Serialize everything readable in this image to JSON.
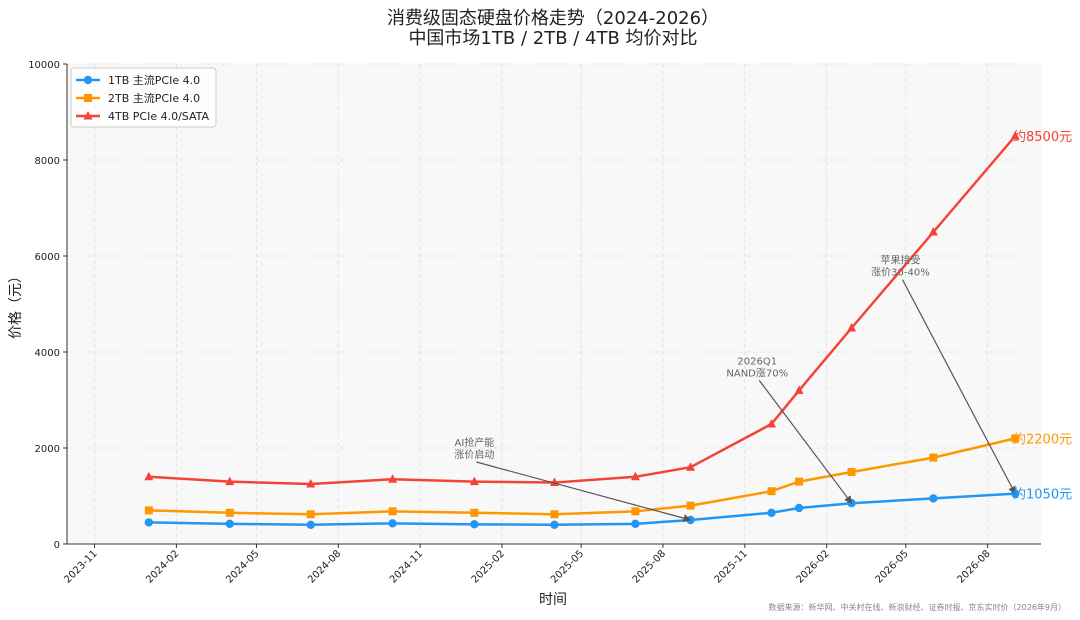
{
  "chart_data": {
    "type": "line",
    "title": "消费级固态硬盘价格走势（2024-2026）",
    "subtitle": "中国市场1TB / 2TB / 4TB 均价对比",
    "xlabel": "时间",
    "ylabel": "价格（元）",
    "ylim": [
      0,
      10000
    ],
    "yticks": [
      0,
      2000,
      4000,
      6000,
      8000,
      10000
    ],
    "xlim": [
      "2023-10-01",
      "2026-09-30"
    ],
    "xticks": [
      "2023-11",
      "2024-02",
      "2024-05",
      "2024-08",
      "2024-11",
      "2025-02",
      "2025-05",
      "2025-08",
      "2025-11",
      "2026-02",
      "2026-05",
      "2026-08"
    ],
    "grid": true,
    "legend_position": "top-left",
    "series": [
      {
        "name": "1TB 主流PCIe 4.0",
        "color": "#2196F3",
        "marker": "circle",
        "x": [
          "2024-01-01",
          "2024-04-01",
          "2024-07-01",
          "2024-10-01",
          "2025-01-01",
          "2025-04-01",
          "2025-07-01",
          "2025-09-01",
          "2025-12-01",
          "2026-01-01",
          "2026-03-01",
          "2026-06-01",
          "2026-09-01"
        ],
        "y": [
          450,
          420,
          400,
          430,
          410,
          400,
          420,
          500,
          650,
          750,
          850,
          950,
          1050
        ]
      },
      {
        "name": "2TB 主流PCIe 4.0",
        "color": "#FF9800",
        "marker": "square",
        "x": [
          "2024-01-01",
          "2024-04-01",
          "2024-07-01",
          "2024-10-01",
          "2025-01-01",
          "2025-04-01",
          "2025-07-01",
          "2025-09-01",
          "2025-12-01",
          "2026-01-01",
          "2026-03-01",
          "2026-06-01",
          "2026-09-01"
        ],
        "y": [
          700,
          650,
          620,
          680,
          650,
          620,
          680,
          800,
          1100,
          1300,
          1500,
          1800,
          2200
        ]
      },
      {
        "name": "4TB PCIe 4.0/SATA",
        "color": "#F44336",
        "marker": "triangle",
        "x": [
          "2024-01-01",
          "2024-04-01",
          "2024-07-01",
          "2024-10-01",
          "2025-01-01",
          "2025-04-01",
          "2025-07-01",
          "2025-09-01",
          "2025-12-01",
          "2026-01-01",
          "2026-03-01",
          "2026-06-01",
          "2026-09-01"
        ],
        "y": [
          1400,
          1300,
          1250,
          1350,
          1300,
          1280,
          1400,
          1600,
          2500,
          3200,
          4500,
          6500,
          8500
        ]
      }
    ],
    "end_labels": [
      {
        "text": "约8500元",
        "color": "#F44336",
        "value": 8500
      },
      {
        "text": "约2200元",
        "color": "#FF9800",
        "value": 2200
      },
      {
        "text": "约1050元",
        "color": "#2196F3",
        "value": 1050
      }
    ],
    "annotations": [
      {
        "lines": [
          "AI抢产能",
          "涨价启动"
        ],
        "text_x": "2025-01-01",
        "text_y": 2000,
        "target_x": "2025-09-01",
        "target_y": 500
      },
      {
        "lines": [
          "2026Q1",
          "NAND涨70%"
        ],
        "text_x": "2025-11-15",
        "text_y": 3700,
        "target_x": "2026-03-01",
        "target_y": 850
      },
      {
        "lines": [
          "苹果接受",
          "涨价30-40%"
        ],
        "text_x": "2026-04-25",
        "text_y": 5800,
        "target_x": "2026-09-01",
        "target_y": 1050
      }
    ],
    "source_note": "数据来源：新华网、中关村在线、新浪财经、证券时报、京东实时价（2026年9月）"
  }
}
